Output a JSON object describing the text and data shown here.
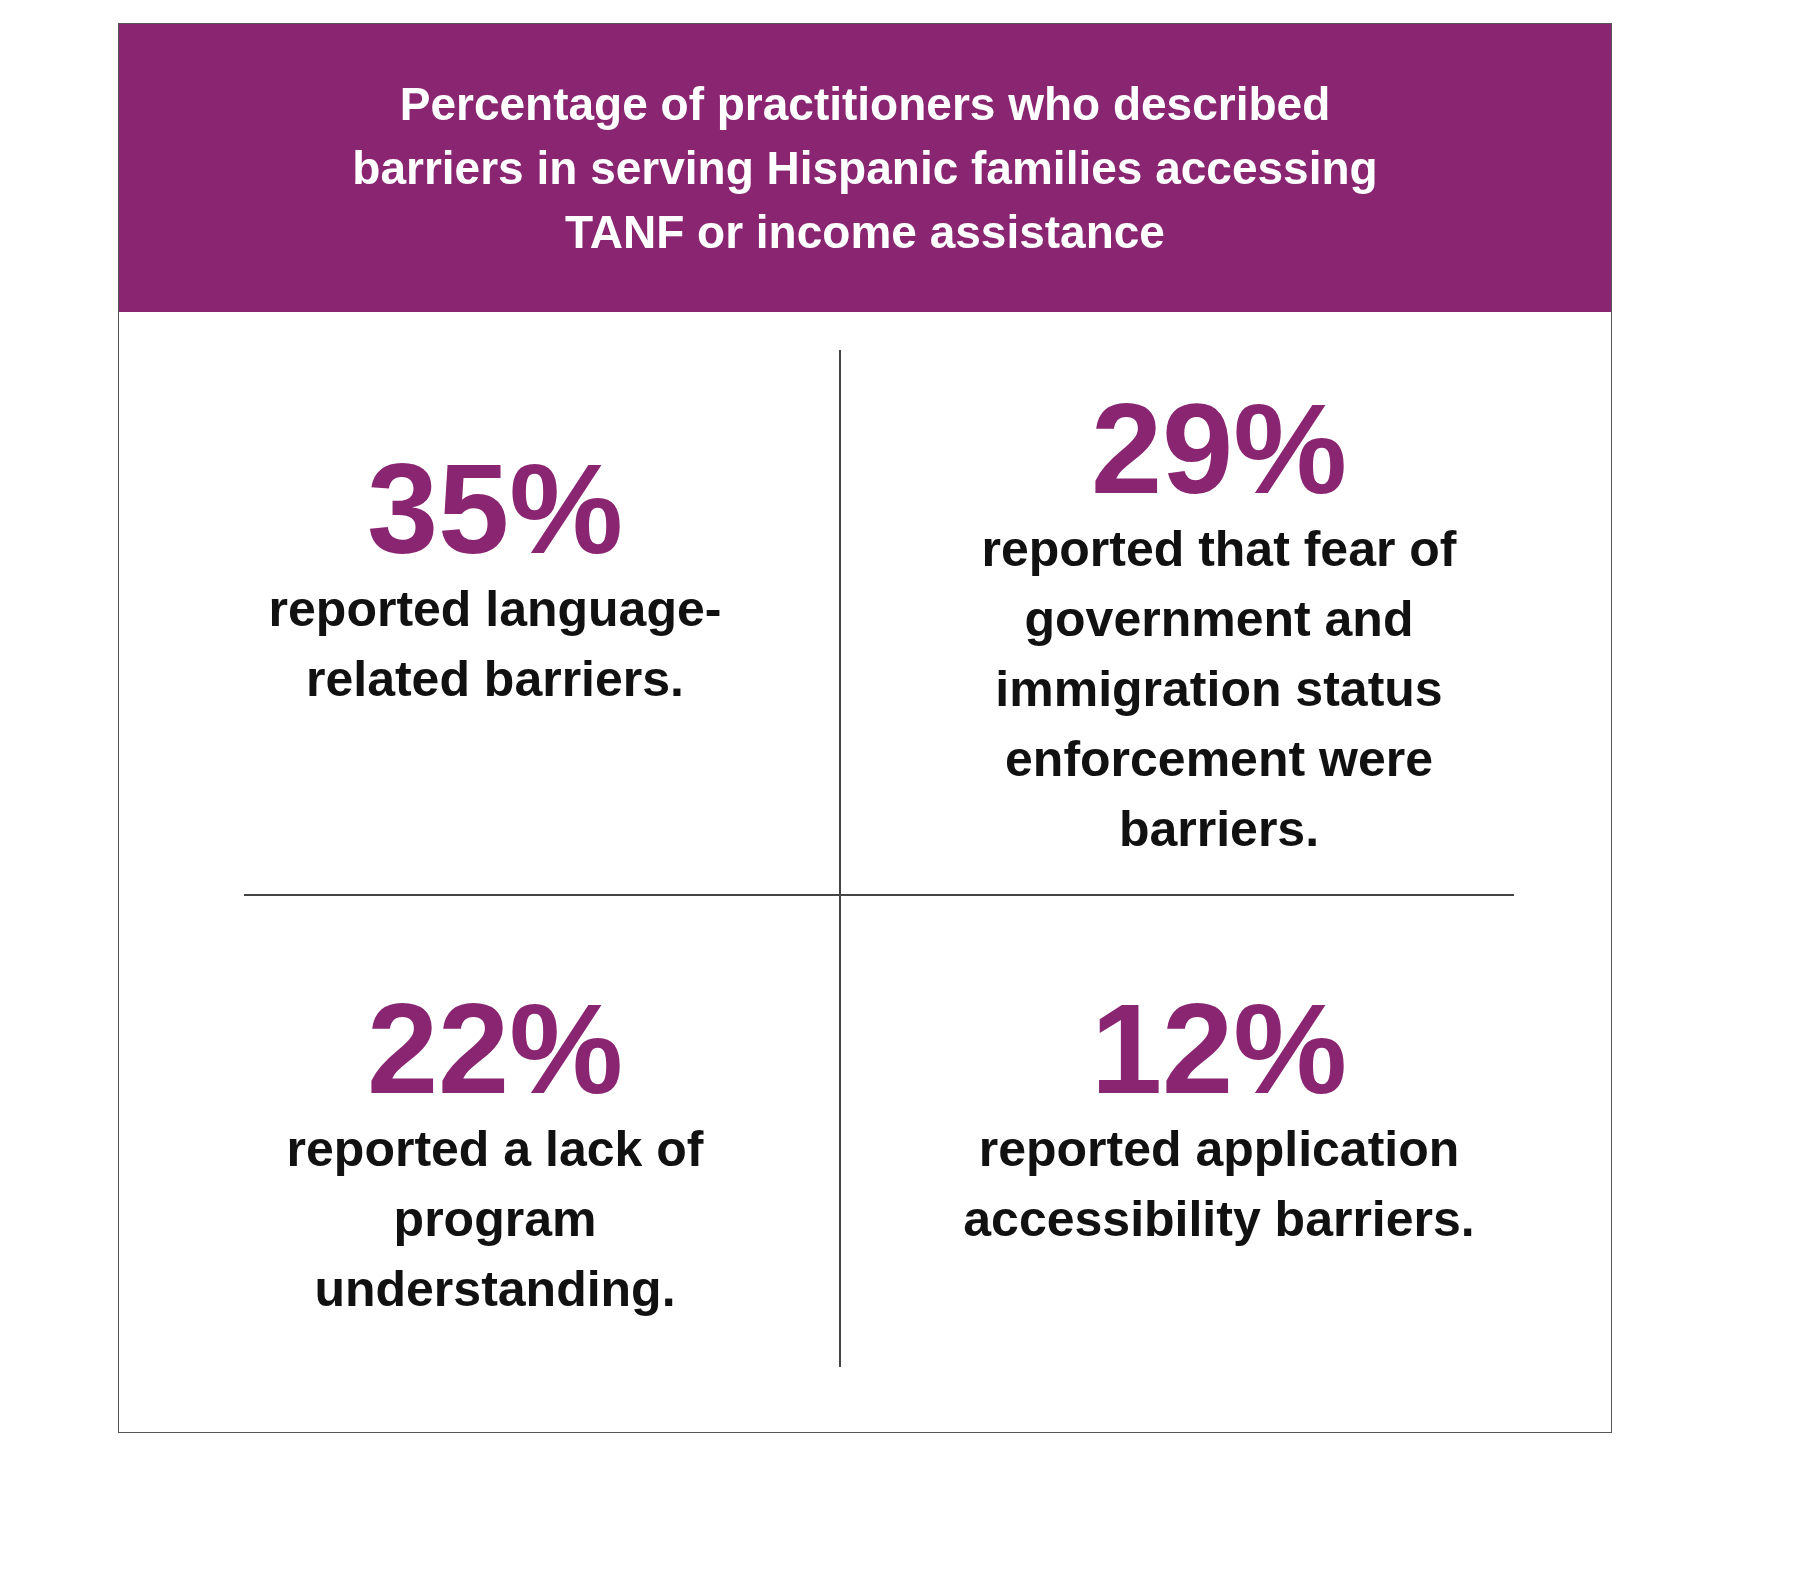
{
  "chart_data": {
    "type": "other",
    "title": "Percentage of practitioners who described barriers in serving Hispanic families accessing TANF or income assistance",
    "categories": [
      "reported language-related barriers.",
      "reported that fear of government and immigration status enforcement were barriers.",
      "reported a lack of program understanding.",
      "reported application accessibility barriers."
    ],
    "values": [
      35,
      29,
      22,
      12
    ],
    "value_labels": [
      "35%",
      "29%",
      "22%",
      "12%"
    ],
    "color": "#8a2572"
  }
}
